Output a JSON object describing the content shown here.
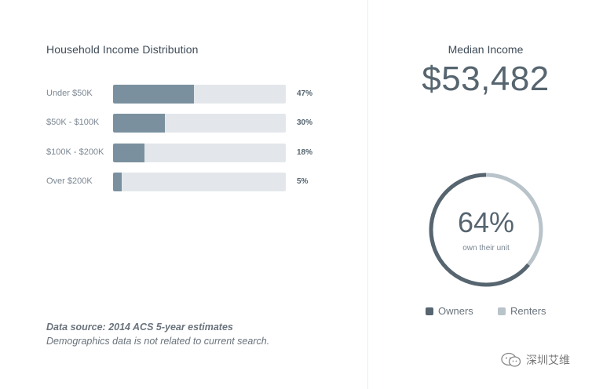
{
  "income": {
    "title": "Household Income Distribution",
    "rows": [
      {
        "label": "Under $50K",
        "value": 47,
        "pct_text": "47%"
      },
      {
        "label": "$50K - $100K",
        "value": 30,
        "pct_text": "30%"
      },
      {
        "label": "$100K - $200K",
        "value": 18,
        "pct_text": "18%"
      },
      {
        "label": "Over $200K",
        "value": 5,
        "pct_text": "5%"
      }
    ]
  },
  "median": {
    "label": "Median Income",
    "value": "$53,482"
  },
  "ownership": {
    "value_text": "64%",
    "owners_fraction": 0.64,
    "caption": "own their unit",
    "legend_owners": "Owners",
    "legend_renters": "Renters"
  },
  "source": {
    "line1": "Data source: 2014 ACS 5-year estimates",
    "line2": "Demographics data is not related to current search."
  },
  "watermark": {
    "text": "深圳艾维"
  },
  "colors": {
    "bar_fill": "#7a909e",
    "bar_track": "#e3e7eb",
    "owners": "#56656f",
    "renters": "#b9c3ca"
  }
}
